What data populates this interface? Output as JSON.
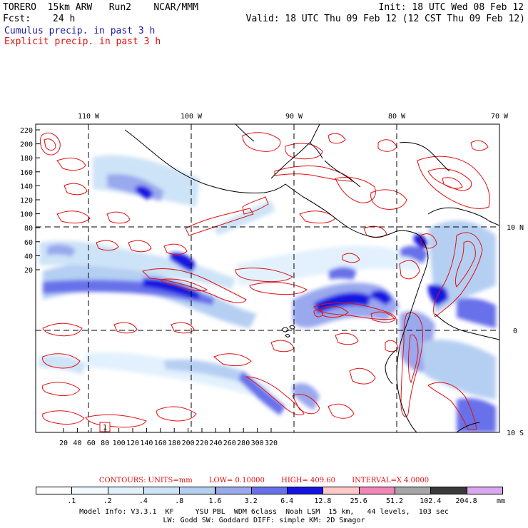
{
  "header": {
    "model": "TORERO  15km ARW   Run2    NCAR/MMM",
    "init": "Init: 18 UTC Wed 08 Feb 12",
    "fcst_label": "Fcst:",
    "fcst_value": "24 h",
    "valid": "Valid: 18 UTC Thu 09 Feb 12 (12 CST Thu 09 Feb 12)",
    "field_cumulus": "Cumulus precip. in past 3 h",
    "field_explicit": "Explicit precip. in past 3 h"
  },
  "map": {
    "top_lon_labels": [
      "110 W",
      "100 W",
      "90 W",
      "80 W",
      "70 W"
    ],
    "right_lat_labels": [
      "10 N",
      "0",
      "10 S"
    ],
    "y_ticks": [
      "220",
      "200",
      "180",
      "160",
      "140",
      "120",
      "100",
      "80",
      "60",
      "40",
      "20"
    ],
    "x_ticks": [
      "20",
      "40",
      "60",
      "80",
      "100",
      "120",
      "140",
      "160",
      "180",
      "200",
      "220",
      "240",
      "260",
      "280",
      "300",
      "320"
    ],
    "box_label": "1",
    "colors": {
      "cumulus": "#1a1aa8",
      "explicit": "#e01010",
      "coast": "#000000"
    }
  },
  "contour_info": {
    "units": "CONTOURS:  UNITS=mm",
    "low": "LOW=  0.10000",
    "high": "HIGH=  409.60",
    "interval": "INTERVAL=X  4.0000"
  },
  "scale": {
    "labels": [
      ".1",
      ".2",
      ".4",
      ".8",
      "1.6",
      "3.2",
      "6.4",
      "12.8",
      "25.6",
      "51.2",
      "102.4",
      "204.8"
    ],
    "unit": "mm",
    "colors": [
      "#ffffff",
      "#f2f9ff",
      "#e2f1fd",
      "#cde3f7",
      "#b5cff2",
      "#9aa8ee",
      "#6871ea",
      "#1414e0",
      "#ffc9c9",
      "#f286b6",
      "#a6a6a6",
      "#3a3a3a",
      "#d9a8f0"
    ]
  },
  "model_info": {
    "line1": "Model Info: V3.3.1  KF     YSU PBL  WDM 6class  Noah LSM  15 km,   44 levels,  103 sec",
    "line2": "LW: Godd SW: Goddard DIFF: simple KM: 2D Smagor"
  }
}
